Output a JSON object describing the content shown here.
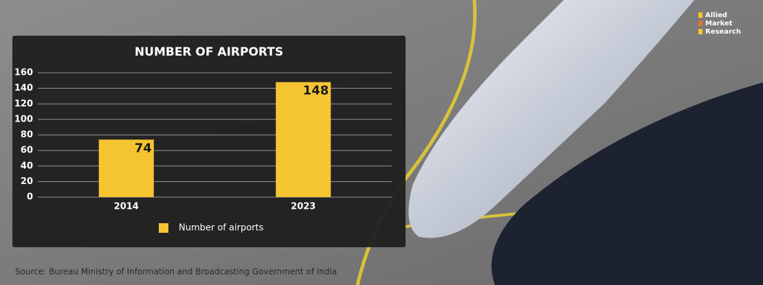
{
  "chart_data": {
    "type": "bar",
    "title": "NUMBER OF AIRPORTS",
    "categories": [
      "2014",
      "2023"
    ],
    "series": [
      {
        "name": "Number of airports",
        "color": "#f5c531",
        "values": [
          74,
          148
        ]
      }
    ],
    "ylim": [
      0,
      160
    ],
    "yticks": [
      0,
      20,
      40,
      60,
      80,
      100,
      120,
      140,
      160
    ],
    "grid": true,
    "legend": "bottom",
    "value_labels_shown": true
  },
  "source": "Source: Bureau Ministry of Information and Broadcasting Government of India",
  "logo": [
    "Allied",
    "Market",
    "Research"
  ]
}
